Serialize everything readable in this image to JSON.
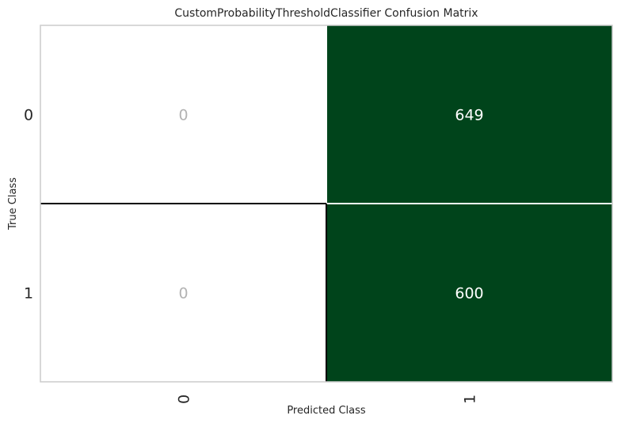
{
  "chart_data": {
    "type": "heatmap",
    "title": "CustomProbabilityThresholdClassifier Confusion Matrix",
    "xlabel": "Predicted Class",
    "ylabel": "True Class",
    "x_categories": [
      "0",
      "1"
    ],
    "y_categories": [
      "0",
      "1"
    ],
    "values": [
      [
        0,
        649
      ],
      [
        0,
        600
      ]
    ],
    "grid": false,
    "colors": {
      "nonzero_fill": "#00441b",
      "zero_fill": "#ffffff",
      "nonzero_text": "#ffffff",
      "zero_text": "#b3b3b3",
      "frame": "#cccccc"
    }
  }
}
